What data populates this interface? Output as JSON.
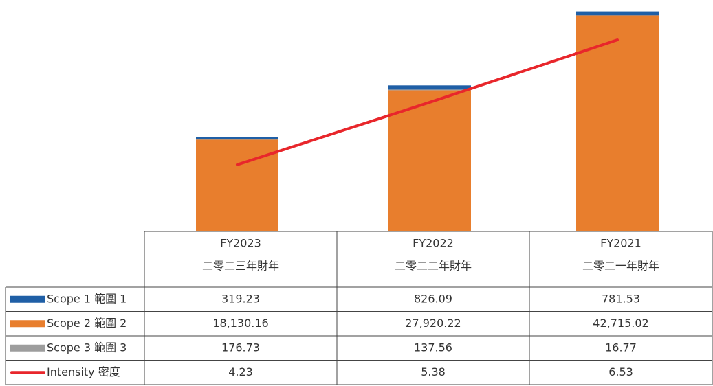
{
  "chart_data": {
    "type": "bar",
    "categories": [
      [
        "FY2023",
        "二零二三年財年"
      ],
      [
        "FY2022",
        "二零二二年財年"
      ],
      [
        "FY2021",
        "二零二一年財年"
      ]
    ],
    "ylim": [
      0,
      44000
    ],
    "y2lim": [
      3,
      7.1
    ],
    "series": [
      {
        "name": "Scope 1 範圍 1",
        "type": "bar",
        "color": "#1f5fa6",
        "values": [
          319.23,
          826.09,
          781.53
        ],
        "value_labels": [
          "319.23",
          "826.09",
          "781.53"
        ]
      },
      {
        "name": "Scope 2 範圍 2",
        "type": "bar",
        "color": "#e87e2d",
        "values": [
          18130.16,
          27920.22,
          42715.02
        ],
        "value_labels": [
          "18,130.16",
          "27,920.22",
          "42,715.02"
        ]
      },
      {
        "name": "Scope 3 範圍 3",
        "type": "bar",
        "color": "#9d9d9d",
        "values": [
          176.73,
          137.56,
          16.77
        ],
        "value_labels": [
          "176.73",
          "137.56",
          "16.77"
        ]
      },
      {
        "name": "Intensity 密度",
        "type": "line",
        "axis": "y2",
        "color": "#e8262b",
        "values": [
          4.23,
          5.38,
          6.53
        ],
        "value_labels": [
          "4.23",
          "5.38",
          "6.53"
        ]
      }
    ]
  }
}
